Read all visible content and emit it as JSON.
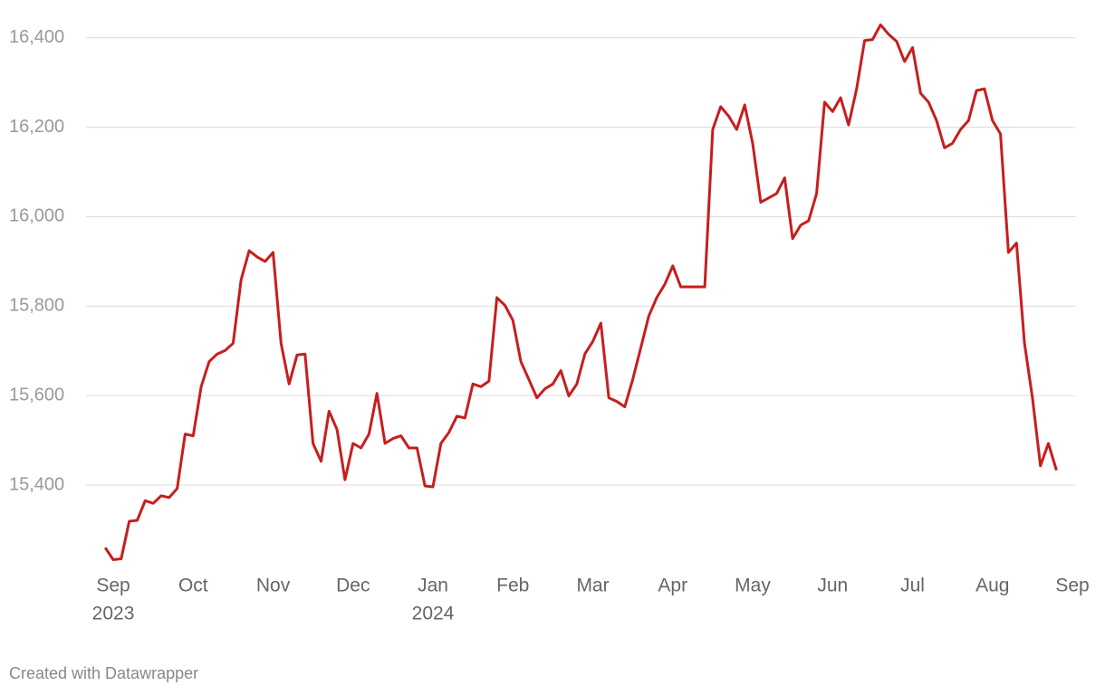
{
  "chart_data": {
    "type": "line",
    "categories": [
      null,
      "Sep",
      null,
      null,
      null,
      null,
      null,
      null,
      null,
      null,
      null,
      "Oct",
      null,
      null,
      null,
      null,
      null,
      null,
      null,
      null,
      null,
      "Nov",
      null,
      null,
      null,
      null,
      null,
      null,
      null,
      null,
      null,
      "Dec",
      null,
      null,
      null,
      null,
      null,
      null,
      null,
      null,
      null,
      "Jan",
      null,
      null,
      null,
      null,
      null,
      null,
      null,
      null,
      null,
      "Feb",
      null,
      null,
      null,
      null,
      null,
      null,
      null,
      null,
      null,
      "Mar",
      null,
      null,
      null,
      null,
      null,
      null,
      null,
      null,
      null,
      "Apr",
      null,
      null,
      null,
      null,
      null,
      null,
      null,
      null,
      null,
      "May",
      null,
      null,
      null,
      null,
      null,
      null,
      null,
      null,
      null,
      "Jun",
      null,
      null,
      null,
      null,
      null,
      null,
      null,
      null,
      null,
      "Jul",
      null,
      null,
      null,
      null,
      null,
      null,
      null,
      null,
      null,
      "Aug",
      null,
      null,
      null,
      null,
      null,
      null,
      null,
      null,
      null,
      "Sep"
    ],
    "category_years": [
      null,
      "2023",
      null,
      null,
      null,
      null,
      null,
      null,
      null,
      null,
      null,
      null,
      null,
      null,
      null,
      null,
      null,
      null,
      null,
      null,
      null,
      null,
      null,
      null,
      null,
      null,
      null,
      null,
      null,
      null,
      null,
      null,
      null,
      null,
      null,
      null,
      null,
      null,
      null,
      null,
      null,
      "2024",
      null,
      null,
      null,
      null,
      null,
      null,
      null,
      null,
      null,
      null,
      null,
      null,
      null,
      null,
      null,
      null,
      null,
      null,
      null,
      null,
      null,
      null,
      null,
      null,
      null,
      null,
      null,
      null,
      null,
      null,
      null,
      null,
      null,
      null,
      null,
      null,
      null,
      null,
      null,
      null,
      null,
      null,
      null,
      null,
      null,
      null,
      null,
      null,
      null,
      null,
      null,
      null,
      null,
      null,
      null,
      null,
      null,
      null,
      null,
      null,
      null,
      null,
      null,
      null,
      null,
      null,
      null,
      null,
      null,
      null,
      null,
      null,
      null,
      null,
      null,
      null,
      null,
      null,
      null,
      null,
      null
    ],
    "values": [
      15260,
      15233,
      15235,
      15319,
      15321,
      15365,
      15359,
      15376,
      15372,
      15392,
      15514,
      15510,
      15620,
      15676,
      15693,
      15701,
      15717,
      15859,
      15924,
      15910,
      15900,
      15920,
      15717,
      15626,
      15691,
      15693,
      15493,
      15453,
      15565,
      15524,
      15412,
      15493,
      15483,
      15514,
      15605,
      15493,
      15504,
      15510,
      15483,
      15483,
      15398,
      15396,
      15493,
      15518,
      15554,
      15550,
      15626,
      15620,
      15632,
      15819,
      15802,
      15768,
      15676,
      15636,
      15595,
      15615,
      15626,
      15656,
      15599,
      15626,
      15693,
      15721,
      15762,
      15595,
      15587,
      15575,
      15636,
      15707,
      15778,
      15819,
      15849,
      15890,
      15843,
      15843,
      15843,
      15843,
      16195,
      16246,
      16225,
      16195,
      16250,
      16164,
      16032,
      16042,
      16052,
      16087,
      15951,
      15981,
      15991,
      16052,
      16256,
      16235,
      16266,
      16205,
      16286,
      16394,
      16396,
      16429,
      16408,
      16392,
      16347,
      16378,
      16276,
      16256,
      16215,
      16154,
      16164,
      16195,
      16215,
      16282,
      16286,
      16215,
      16185,
      15920,
      15941,
      15717,
      15595,
      15443,
      15493,
      15433,
      null,
      null
    ],
    "color": "#c71e1d",
    "ylim": [
      15230,
      16440
    ],
    "yticks": [
      {
        "value": 15400,
        "label": "15,400"
      },
      {
        "value": 15600,
        "label": "15,600"
      },
      {
        "value": 15800,
        "label": "15,800"
      },
      {
        "value": 16000,
        "label": "16,000"
      },
      {
        "value": 16200,
        "label": "16,200"
      },
      {
        "value": 16400,
        "label": "16,400"
      }
    ],
    "grid": true,
    "footer": "Created with Datawrapper"
  }
}
